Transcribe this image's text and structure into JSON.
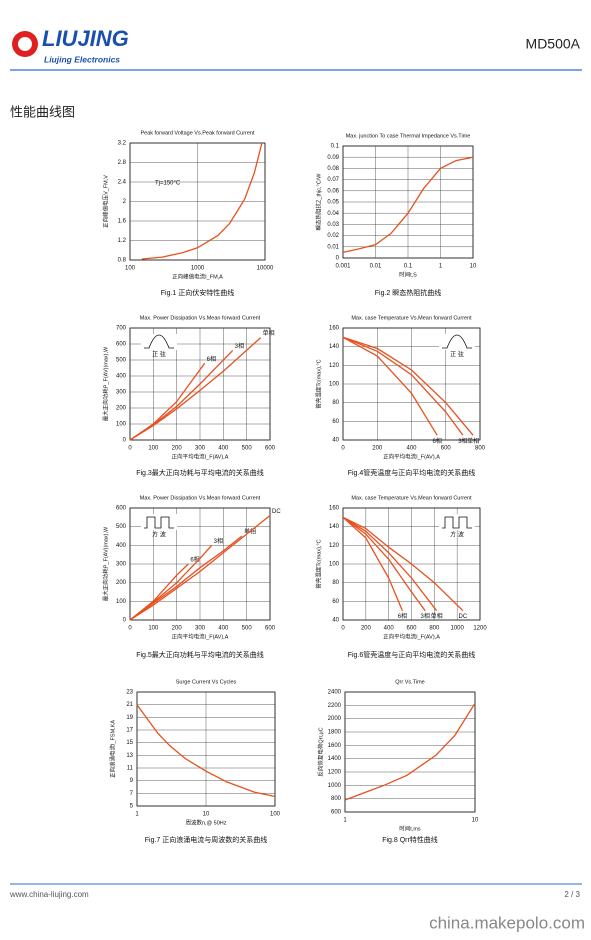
{
  "header": {
    "logo": "LIUJING",
    "logo_sub": "Liujing Electronics",
    "model": "MD500A"
  },
  "section_title": "性能曲线图",
  "chart_data": [
    {
      "type": "line",
      "title": "Peak forward Voltage Vs.Peak forward Current",
      "xlabel": "正向峰值电流I_FM,A",
      "ylabel": "正向峰值电压V_FM,V",
      "annotation": "Tj=150°C",
      "caption": "Fig.1 正向伏安特性曲线",
      "xlog": true,
      "xlim": [
        100,
        10000
      ],
      "xticks": [
        100,
        1000,
        10000
      ],
      "ylim": [
        0.8,
        3.2
      ],
      "yticks": [
        0.8,
        1.2,
        1.6,
        2,
        2.4,
        2.8,
        3.2
      ],
      "series": [
        {
          "color": "#e8501e",
          "x": [
            150,
            300,
            600,
            1000,
            2000,
            3000,
            5000,
            7000,
            9000
          ],
          "values": [
            0.82,
            0.86,
            0.95,
            1.05,
            1.3,
            1.55,
            2.05,
            2.6,
            3.2
          ]
        }
      ]
    },
    {
      "type": "line",
      "title": "Max. junction To case Thermal Impedance Vs.Time",
      "xlabel": "时间t,S",
      "ylabel": "瞬态热阻抗Z_thjc,°C/W",
      "caption": "Fig.2 瞬态热阻抗曲线",
      "xlog": true,
      "xlim": [
        0.001,
        10
      ],
      "xticks": [
        0.001,
        0.01,
        0.1,
        1,
        10
      ],
      "ylim": [
        0,
        0.1
      ],
      "yticks": [
        0,
        0.01,
        0.02,
        0.03,
        0.04,
        0.05,
        0.06,
        0.07,
        0.08,
        0.09,
        0.1
      ],
      "series": [
        {
          "color": "#e8501e",
          "x": [
            0.001,
            0.003,
            0.01,
            0.03,
            0.1,
            0.3,
            1,
            3,
            10
          ],
          "values": [
            0.005,
            0.008,
            0.012,
            0.022,
            0.04,
            0.062,
            0.08,
            0.087,
            0.09
          ]
        }
      ]
    },
    {
      "type": "line",
      "title": "Max. Power Dissipation Vs.Mean forward Current",
      "xlabel": "正向平均电流I_F(AV),A",
      "ylabel": "最大正向功耗P_F(AV)(max),W",
      "waveform": "正 弦",
      "caption": "Fig.3最大正向功耗与平均电流的关系曲线",
      "xlog": false,
      "xlim": [
        0,
        600
      ],
      "xticks": [
        0,
        100,
        200,
        300,
        400,
        500,
        600
      ],
      "ylim": [
        0,
        700
      ],
      "yticks": [
        0,
        100,
        200,
        300,
        400,
        500,
        600,
        700
      ],
      "series": [
        {
          "name": "6相",
          "color": "#e8501e",
          "x": [
            0,
            100,
            200,
            320
          ],
          "values": [
            0,
            100,
            240,
            480
          ]
        },
        {
          "name": "3相",
          "color": "#e8501e",
          "x": [
            0,
            100,
            200,
            300,
            440
          ],
          "values": [
            0,
            95,
            210,
            350,
            560
          ]
        },
        {
          "name": "单相",
          "color": "#e8501e",
          "x": [
            0,
            100,
            200,
            300,
            400,
            560
          ],
          "values": [
            0,
            90,
            195,
            310,
            430,
            640
          ]
        }
      ]
    },
    {
      "type": "line",
      "title": "Max. case Temperature Vs.Mean forward Current",
      "xlabel": "正向平均电流I_F(AV),A",
      "ylabel": "管壳温度Tc(max),°C",
      "waveform": "正 弦",
      "caption": "Fig.4管壳温度与正向平均电流的关系曲线",
      "xlog": false,
      "xlim": [
        0,
        800
      ],
      "xticks": [
        0,
        200,
        400,
        600,
        800
      ],
      "ylim": [
        40,
        160
      ],
      "yticks": [
        40,
        60,
        80,
        100,
        120,
        140,
        160
      ],
      "series": [
        {
          "name": "6相",
          "color": "#e8501e",
          "x": [
            0,
            200,
            400,
            550
          ],
          "values": [
            150,
            130,
            90,
            45
          ]
        },
        {
          "name": "3相",
          "color": "#e8501e",
          "x": [
            0,
            200,
            400,
            600,
            700
          ],
          "values": [
            150,
            135,
            110,
            70,
            45
          ]
        },
        {
          "name": "单相",
          "color": "#e8501e",
          "x": [
            0,
            200,
            400,
            600,
            760
          ],
          "values": [
            150,
            138,
            115,
            80,
            45
          ]
        }
      ]
    },
    {
      "type": "line",
      "title": "Max. Power Dissipation Vs.Mean forward Current",
      "xlabel": "正向平均电流I_F(AV),A",
      "ylabel": "最大正向功耗P_F(AV)(max),W",
      "waveform": "方 波",
      "caption": "Fig.5最大正向功耗与平均电流的关系曲线",
      "xlog": false,
      "xlim": [
        0,
        600
      ],
      "xticks": [
        0,
        100,
        200,
        300,
        400,
        500,
        600
      ],
      "ylim": [
        0,
        600
      ],
      "yticks": [
        0,
        100,
        200,
        300,
        400,
        500,
        600
      ],
      "series": [
        {
          "name": "6相",
          "color": "#e8501e",
          "x": [
            0,
            100,
            200,
            250
          ],
          "values": [
            0,
            100,
            240,
            300
          ]
        },
        {
          "name": "3相",
          "color": "#e8501e",
          "x": [
            0,
            100,
            200,
            300,
            350
          ],
          "values": [
            0,
            95,
            200,
            330,
            400
          ]
        },
        {
          "name": "单相",
          "color": "#e8501e",
          "x": [
            0,
            100,
            200,
            300,
            400,
            480
          ],
          "values": [
            0,
            90,
            180,
            280,
            370,
            450
          ]
        },
        {
          "name": "DC",
          "color": "#e8501e",
          "x": [
            0,
            100,
            200,
            300,
            400,
            500,
            600
          ],
          "values": [
            0,
            80,
            170,
            260,
            360,
            460,
            560
          ]
        }
      ]
    },
    {
      "type": "line",
      "title": "Max. case Temperature Vs.Mean forward Current",
      "xlabel": "正向平均电流I_F(AV),A",
      "ylabel": "管壳温度Tc(max),°C",
      "waveform": "方 波",
      "caption": "Fig.6管壳温度与正向平均电流的关系曲线",
      "xlog": false,
      "xlim": [
        0,
        1200
      ],
      "xticks": [
        0,
        200,
        400,
        600,
        800,
        1000,
        1200
      ],
      "ylim": [
        40,
        160
      ],
      "yticks": [
        40,
        60,
        80,
        100,
        120,
        140,
        160
      ],
      "series": [
        {
          "name": "6相",
          "color": "#e8501e",
          "x": [
            0,
            200,
            400,
            520
          ],
          "values": [
            150,
            128,
            85,
            50
          ]
        },
        {
          "name": "3相",
          "color": "#e8501e",
          "x": [
            0,
            200,
            400,
            600,
            720
          ],
          "values": [
            150,
            132,
            105,
            70,
            50
          ]
        },
        {
          "name": "单相",
          "color": "#e8501e",
          "x": [
            0,
            200,
            400,
            600,
            820
          ],
          "values": [
            150,
            135,
            112,
            85,
            50
          ]
        },
        {
          "name": "DC",
          "color": "#e8501e",
          "x": [
            0,
            200,
            400,
            600,
            800,
            1050
          ],
          "values": [
            150,
            138,
            118,
            100,
            80,
            50
          ]
        }
      ]
    },
    {
      "type": "line",
      "title": "Surge Current Vs Cycles",
      "xlabel": "周波数n,@ 50Hz",
      "ylabel": "正向浪涌电流I_FSM,KA",
      "caption": "Fig.7 正向浪涌电流与周波数的关系曲线",
      "xlog": true,
      "xlim": [
        1,
        100
      ],
      "xticks": [
        1,
        10,
        100
      ],
      "ylim": [
        5,
        23
      ],
      "yticks": [
        5,
        7,
        9,
        11,
        13,
        15,
        17,
        19,
        21,
        23
      ],
      "series": [
        {
          "color": "#e8501e",
          "x": [
            1,
            2,
            3,
            5,
            10,
            20,
            50,
            100
          ],
          "values": [
            21,
            16.5,
            14.5,
            12.5,
            10.5,
            8.8,
            7.2,
            6.5
          ]
        }
      ]
    },
    {
      "type": "line",
      "title": "Qrr Vs.Time",
      "xlabel": "时间t,ms",
      "ylabel": "反向恢复电荷Qrr,μC",
      "caption": "Fig.8 Qrr特性曲线",
      "xlog": true,
      "xlim": [
        1,
        10
      ],
      "xticks": [
        1,
        10
      ],
      "ylim": [
        600,
        2400
      ],
      "yticks": [
        600,
        800,
        1000,
        1200,
        1400,
        1600,
        1800,
        2000,
        2200,
        2400
      ],
      "series": [
        {
          "color": "#e8501e",
          "x": [
            1,
            2,
            3,
            5,
            7,
            10
          ],
          "values": [
            780,
            1000,
            1150,
            1450,
            1750,
            2230
          ]
        }
      ]
    }
  ],
  "footer": {
    "url": "www.china-liujing.com",
    "page": "2 / 3",
    "watermark": "china.makepolo.com"
  }
}
